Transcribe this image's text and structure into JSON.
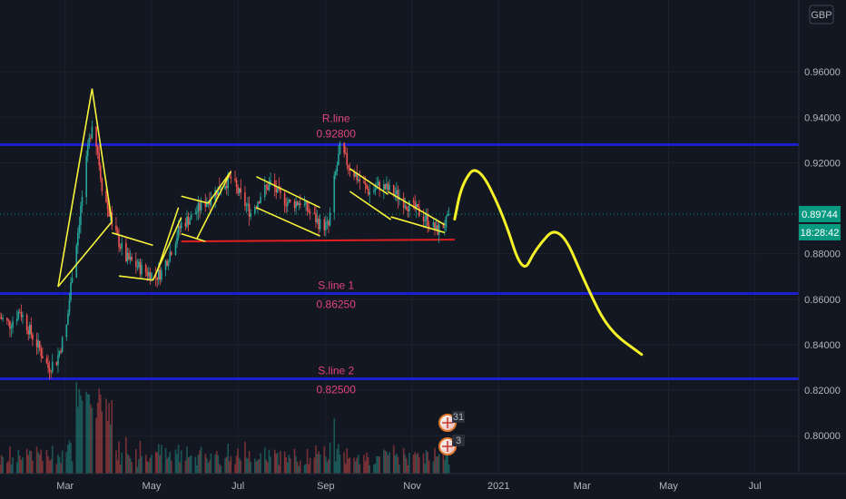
{
  "chart_data": {
    "type": "candlestick",
    "currency": "GBP",
    "last_price_label": "0.89744",
    "countdown": "18:28:42",
    "y_axis": {
      "ylim": [
        0.7833,
        0.9916
      ],
      "ticks": [
        {
          "value": 0.96,
          "label": "0.96000"
        },
        {
          "value": 0.94,
          "label": "0.94000"
        },
        {
          "value": 0.92,
          "label": "0.92000"
        },
        {
          "value": 0.88,
          "label": "0.88000"
        },
        {
          "value": 0.86,
          "label": "0.86000"
        },
        {
          "value": 0.84,
          "label": "0.84000"
        },
        {
          "value": 0.82,
          "label": "0.82000"
        },
        {
          "value": 0.8,
          "label": "0.80000"
        }
      ]
    },
    "x_axis": {
      "start": "2020-01-15",
      "end": "2021-08-01",
      "ticks": [
        {
          "date": "2020-03-01",
          "label": "Mar"
        },
        {
          "date": "2020-05-01",
          "label": "May"
        },
        {
          "date": "2020-07-01",
          "label": "Jul"
        },
        {
          "date": "2020-09-01",
          "label": "Sep"
        },
        {
          "date": "2020-11-01",
          "label": "Nov"
        },
        {
          "date": "2021-01-01",
          "label": "2021"
        },
        {
          "date": "2021-03-01",
          "label": "Mar"
        },
        {
          "date": "2021-05-01",
          "label": "May"
        },
        {
          "date": "2021-07-01",
          "label": "Jul"
        }
      ]
    },
    "last_price": 0.89744,
    "levels": [
      {
        "name": "R.line",
        "value": 0.928,
        "value_label": "0.92800",
        "color": "#1c1fd1"
      },
      {
        "name": "S.line 1",
        "value": 0.8625,
        "value_label": "0.86250",
        "color": "#1c1fd1"
      },
      {
        "name": "S.line 2",
        "value": 0.825,
        "value_label": "0.82500",
        "color": "#1c1fd1"
      }
    ],
    "support_line": {
      "from": [
        "2020-05-22",
        0.8854
      ],
      "to": [
        "2020-12-01",
        0.8862
      ],
      "color": "#e01f1f"
    },
    "price_path": [
      [
        "2020-01-15",
        0.852
      ],
      [
        "2020-01-22",
        0.849
      ],
      [
        "2020-01-29",
        0.855
      ],
      [
        "2020-02-05",
        0.846
      ],
      [
        "2020-02-12",
        0.838
      ],
      [
        "2020-02-18",
        0.83
      ],
      [
        "2020-02-24",
        0.833
      ],
      [
        "2020-03-02",
        0.848
      ],
      [
        "2020-03-06",
        0.872
      ],
      [
        "2020-03-10",
        0.89
      ],
      [
        "2020-03-13",
        0.905
      ],
      [
        "2020-03-17",
        0.925
      ],
      [
        "2020-03-20",
        0.938
      ],
      [
        "2020-03-24",
        0.925
      ],
      [
        "2020-03-27",
        0.91
      ],
      [
        "2020-03-31",
        0.9
      ],
      [
        "2020-04-06",
        0.888
      ],
      [
        "2020-04-13",
        0.878
      ],
      [
        "2020-04-20",
        0.875
      ],
      [
        "2020-04-27",
        0.872
      ],
      [
        "2020-05-04",
        0.87
      ],
      [
        "2020-05-08",
        0.872
      ],
      [
        "2020-05-15",
        0.882
      ],
      [
        "2020-05-22",
        0.893
      ],
      [
        "2020-05-29",
        0.896
      ],
      [
        "2020-06-05",
        0.901
      ],
      [
        "2020-06-12",
        0.905
      ],
      [
        "2020-06-19",
        0.91
      ],
      [
        "2020-06-26",
        0.913
      ],
      [
        "2020-07-03",
        0.905
      ],
      [
        "2020-07-10",
        0.898
      ],
      [
        "2020-07-17",
        0.906
      ],
      [
        "2020-07-24",
        0.911
      ],
      [
        "2020-07-31",
        0.905
      ],
      [
        "2020-08-07",
        0.902
      ],
      [
        "2020-08-14",
        0.903
      ],
      [
        "2020-08-21",
        0.898
      ],
      [
        "2020-08-28",
        0.893
      ],
      [
        "2020-09-03",
        0.892
      ],
      [
        "2020-09-07",
        0.912
      ],
      [
        "2020-09-11",
        0.926
      ],
      [
        "2020-09-18",
        0.918
      ],
      [
        "2020-09-25",
        0.912
      ],
      [
        "2020-10-02",
        0.907
      ],
      [
        "2020-10-09",
        0.91
      ],
      [
        "2020-10-16",
        0.908
      ],
      [
        "2020-10-23",
        0.905
      ],
      [
        "2020-10-30",
        0.901
      ],
      [
        "2020-11-06",
        0.898
      ],
      [
        "2020-11-13",
        0.894
      ],
      [
        "2020-11-18",
        0.89
      ],
      [
        "2020-11-24",
        0.893
      ],
      [
        "2020-11-30",
        0.897
      ]
    ],
    "forecast_path": [
      [
        "2020-12-01",
        0.8952
      ],
      [
        "2020-12-06",
        0.9105
      ],
      [
        "2020-12-17",
        0.9199
      ],
      [
        "2021-01-04",
        0.8978
      ],
      [
        "2021-01-18",
        0.8704
      ],
      [
        "2021-01-27",
        0.8821
      ],
      [
        "2021-02-13",
        0.8936
      ],
      [
        "2021-03-05",
        0.8645
      ],
      [
        "2021-03-20",
        0.8462
      ],
      [
        "2021-04-12",
        0.8357
      ]
    ],
    "patterns": [
      [
        [
          "2020-02-25",
          0.8655
        ],
        [
          "2020-03-20",
          0.9526
        ]
      ],
      [
        [
          "2020-03-20",
          0.9526
        ],
        [
          "2020-04-03",
          0.8941
        ]
      ],
      [
        [
          "2020-04-03",
          0.8941
        ],
        [
          "2020-02-25",
          0.8655
        ]
      ],
      [
        [
          "2020-04-03",
          0.8892
        ],
        [
          "2020-05-02",
          0.8837
        ]
      ],
      [
        [
          "2020-04-08",
          0.8702
        ],
        [
          "2020-05-02",
          0.8684
        ]
      ],
      [
        [
          "2020-05-02",
          0.8684
        ],
        [
          "2020-05-22",
          0.896
        ]
      ],
      [
        [
          "2020-05-05",
          0.8724
        ],
        [
          "2020-05-20",
          0.9003
        ]
      ],
      [
        [
          "2020-05-22",
          0.9053
        ],
        [
          "2020-06-10",
          0.9022
        ]
      ],
      [
        [
          "2020-05-22",
          0.8888
        ],
        [
          "2020-06-08",
          0.8854
        ]
      ],
      [
        [
          "2020-06-02",
          0.8866
        ],
        [
          "2020-06-26",
          0.9162
        ]
      ],
      [
        [
          "2020-06-10",
          0.9022
        ],
        [
          "2020-06-26",
          0.9162
        ]
      ],
      [
        [
          "2020-07-14",
          0.9139
        ],
        [
          "2020-08-28",
          0.9003
        ]
      ],
      [
        [
          "2020-07-14",
          0.9003
        ],
        [
          "2020-08-28",
          0.8878
        ]
      ],
      [
        [
          "2020-09-18",
          0.9174
        ],
        [
          "2020-10-15",
          0.9061
        ]
      ],
      [
        [
          "2020-09-18",
          0.9074
        ],
        [
          "2020-10-17",
          0.895
        ]
      ],
      [
        [
          "2020-10-15",
          0.9073
        ],
        [
          "2020-11-24",
          0.8927
        ]
      ],
      [
        [
          "2020-10-17",
          0.8962
        ],
        [
          "2020-11-24",
          0.8893
        ]
      ]
    ],
    "annotations": [
      {
        "label": "R.line",
        "value_label": "0.92800",
        "date": "2020-09-07"
      },
      {
        "label": "S.line 1",
        "value_label": "0.86250",
        "date": "2020-09-07"
      },
      {
        "label": "S.line 2",
        "value_label": "0.82500",
        "date": "2020-09-07"
      }
    ],
    "event_flags": [
      {
        "date": "2020-11-26",
        "label": "31"
      },
      {
        "date": "2020-11-26",
        "label": "3"
      }
    ],
    "colors": {
      "up": "#26a69a",
      "down": "#ef5350",
      "pattern": "#f7f43a",
      "forecast": "#f5f227"
    }
  }
}
